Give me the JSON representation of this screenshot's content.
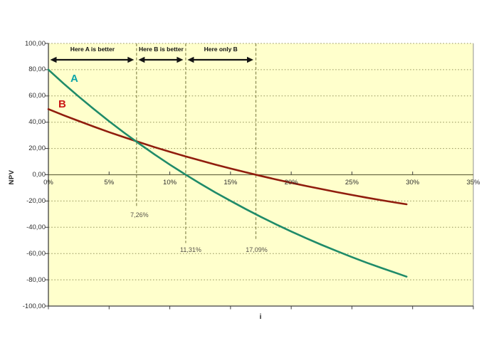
{
  "chart_data": {
    "type": "line",
    "title": "",
    "xlabel": "i",
    "ylabel": "NPV",
    "xlim_percent": [
      0,
      35
    ],
    "ylim": [
      -100,
      100
    ],
    "grid": "dotted horizontal gridlines every 20, legend none",
    "x_tick_values": [
      0,
      5,
      10,
      15,
      20,
      25,
      30,
      35
    ],
    "x_tick_labels": [
      "0%",
      "5%",
      "10%",
      "15%",
      "20%",
      "25%",
      "30%",
      "35%"
    ],
    "y_tick_values": [
      100,
      80,
      60,
      40,
      20,
      0,
      -20,
      -40,
      -60,
      -80,
      -100
    ],
    "y_tick_labels": [
      "100,00",
      "80,00",
      "60,00",
      "40,00",
      "20,00",
      "0,00",
      "-20,00",
      "-40,00",
      "-60,00",
      "-80,00",
      "-100,00"
    ],
    "series": [
      {
        "name": "A",
        "color": "#1f8b69",
        "label_color": "#0ba5a8",
        "x": [
          0,
          1.25,
          2.5,
          3.75,
          5,
          6.25,
          7.5,
          8.75,
          10,
          11.25,
          12.5,
          13.75,
          15,
          16.25,
          17.5,
          18.75,
          20,
          21.25,
          22.5,
          23.75,
          25,
          26.25,
          27.5,
          28.75,
          29.5
        ],
        "y": [
          80,
          69.5,
          59.5,
          49.9,
          40.7,
          31.9,
          23.5,
          15.4,
          7.7,
          0.4,
          -6.7,
          -13.5,
          -19.9,
          -26.1,
          -32.1,
          -37.8,
          -43.2,
          -48.4,
          -53.4,
          -58.1,
          -62.7,
          -67.1,
          -71.2,
          -75.2,
          -77.6
        ]
      },
      {
        "name": "B",
        "color": "#901d0d",
        "label_color": "#cb1616",
        "x": [
          0,
          1.25,
          2.5,
          3.75,
          5,
          6.25,
          7.5,
          8.75,
          10,
          11.25,
          12.5,
          13.75,
          15,
          16.25,
          17.5,
          18.75,
          20,
          21.25,
          22.5,
          23.75,
          25,
          26.25,
          27.5,
          28.75,
          29.5
        ],
        "y": [
          50,
          45.3,
          40.9,
          36.6,
          32.4,
          28.5,
          24.7,
          21.0,
          17.5,
          14.1,
          10.9,
          7.7,
          4.7,
          1.9,
          -0.9,
          -3.6,
          -6.1,
          -8.6,
          -10.9,
          -13.2,
          -15.4,
          -17.5,
          -19.5,
          -21.4,
          -22.5
        ]
      }
    ],
    "annotations": {
      "regions": [
        {
          "label": "Here A is better",
          "from_percent": 0,
          "to_percent": 7.26
        },
        {
          "label": "Here B is better",
          "from_percent": 7.26,
          "to_percent": 11.31
        },
        {
          "label": "Here only B",
          "from_percent": 11.31,
          "to_percent": 17.09
        }
      ],
      "crossovers": [
        {
          "label": "7,26%",
          "x_percent": 7.26,
          "line_to_npv": -25,
          "label_npv": -31
        },
        {
          "label": "11,31%",
          "x_percent": 11.31,
          "line_to_npv": -52,
          "label_npv": -57.5
        },
        {
          "label": "17,09%",
          "x_percent": 17.09,
          "line_to_npv": -50,
          "label_npv": -57.5
        }
      ]
    },
    "colors": {
      "plot_bg": "#FFFFCC",
      "grid": "#97975f",
      "dashed_line": "#8a8a50",
      "zero_axis": "#6b6b45",
      "axis": "#3f3f3f",
      "plot_border": "#909090",
      "arrow": "#141414",
      "tick_text": "#2e2e2e",
      "crossover_text": "#56524a"
    }
  }
}
